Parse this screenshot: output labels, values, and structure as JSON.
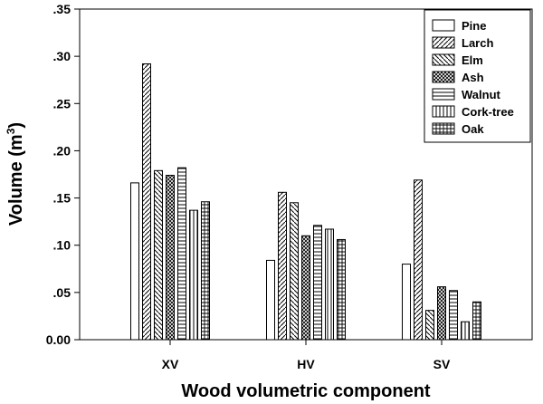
{
  "chart_data": {
    "type": "bar",
    "categories": [
      "XV",
      "HV",
      "SV"
    ],
    "series": [
      {
        "name": "Pine",
        "values": [
          0.166,
          0.084,
          0.08
        ],
        "pattern": "none"
      },
      {
        "name": "Larch",
        "values": [
          0.292,
          0.156,
          0.169
        ],
        "pattern": "diag-right"
      },
      {
        "name": "Elm",
        "values": [
          0.179,
          0.145,
          0.031
        ],
        "pattern": "diag-left"
      },
      {
        "name": "Ash",
        "values": [
          0.174,
          0.11,
          0.056
        ],
        "pattern": "crosshatch"
      },
      {
        "name": "Walnut",
        "values": [
          0.182,
          0.121,
          0.052
        ],
        "pattern": "horizontal"
      },
      {
        "name": "Cork-tree",
        "values": [
          0.137,
          0.117,
          0.019
        ],
        "pattern": "vertical"
      },
      {
        "name": "Oak",
        "values": [
          0.146,
          0.106,
          0.04
        ],
        "pattern": "grid"
      }
    ],
    "xlabel": "Wood volumetric component",
    "ylabel": "Volume (m",
    "ylabel_superscript": "3",
    "ylabel_suffix": ")",
    "ylim": [
      0,
      0.35
    ],
    "yticks": [
      {
        "value": 0.0,
        "label": "0.00"
      },
      {
        "value": 0.05,
        "label": ".05"
      },
      {
        "value": 0.1,
        "label": ".10"
      },
      {
        "value": 0.15,
        "label": ".15"
      },
      {
        "value": 0.2,
        "label": ".20"
      },
      {
        "value": 0.25,
        "label": ".25"
      },
      {
        "value": 0.3,
        "label": ".30"
      },
      {
        "value": 0.35,
        "label": ".35"
      }
    ],
    "grid": false,
    "legend_position": "top-right",
    "colors": {
      "stroke": "#000000",
      "fill": "#ffffff"
    }
  }
}
